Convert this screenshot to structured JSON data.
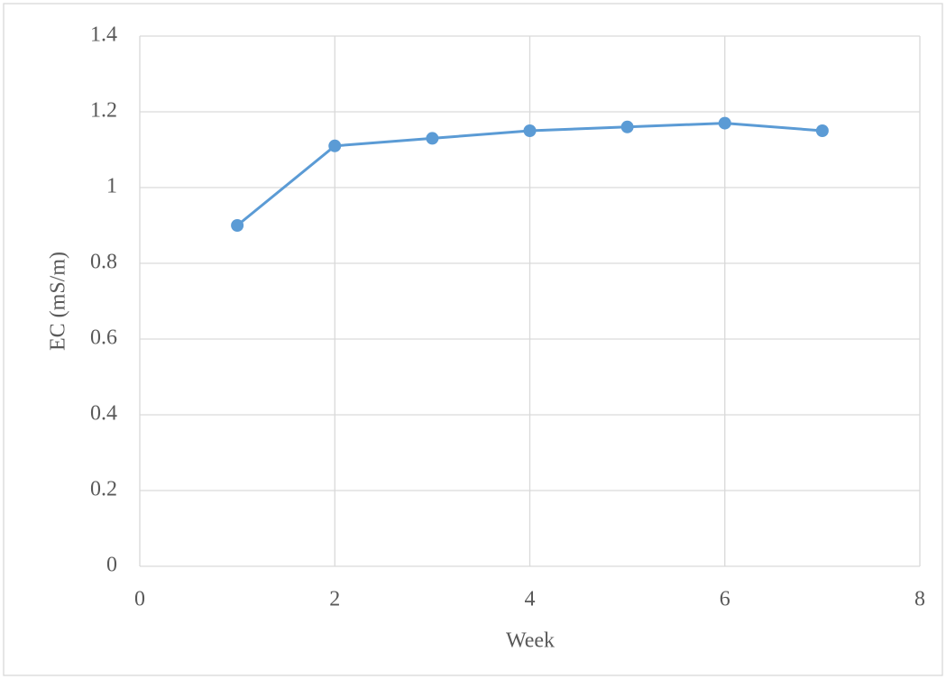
{
  "chart_data": {
    "type": "scatter",
    "lines": true,
    "x_label": "Week",
    "y_label": "EC (mS/m)",
    "x": [
      1,
      2,
      3,
      4,
      5,
      6,
      7
    ],
    "values": [
      0.9,
      1.11,
      1.13,
      1.15,
      1.16,
      1.17,
      1.15
    ],
    "color": "#5b9bd5",
    "xlim": [
      0,
      8
    ],
    "xticks": [
      0,
      2,
      4,
      6,
      8
    ],
    "ylim": [
      0,
      1.4
    ],
    "yticks": [
      0,
      0.2,
      0.4,
      0.6,
      0.8,
      1,
      1.2,
      1.4
    ],
    "grid": true
  }
}
